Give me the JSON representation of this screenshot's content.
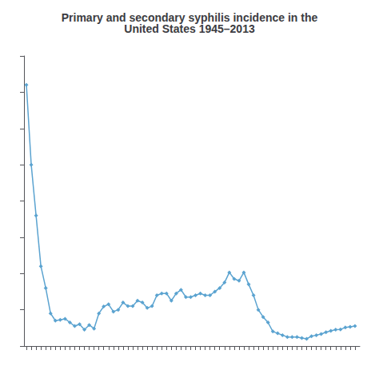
{
  "chart_data": {
    "type": "line",
    "title": "Primary and secondary syphilis incidence in the\nUnited States 1945–2013",
    "x": [
      1945,
      1946,
      1947,
      1948,
      1949,
      1950,
      1951,
      1952,
      1953,
      1954,
      1955,
      1956,
      1957,
      1958,
      1959,
      1960,
      1961,
      1962,
      1963,
      1964,
      1965,
      1966,
      1967,
      1968,
      1969,
      1970,
      1971,
      1972,
      1973,
      1974,
      1975,
      1976,
      1977,
      1978,
      1979,
      1980,
      1981,
      1982,
      1983,
      1984,
      1985,
      1986,
      1987,
      1988,
      1989,
      1990,
      1991,
      1992,
      1993,
      1994,
      1995,
      1996,
      1997,
      1998,
      1999,
      2000,
      2001,
      2002,
      2003,
      2004,
      2005,
      2006,
      2007,
      2008,
      2009,
      2010,
      2011,
      2012,
      2013
    ],
    "values": [
      72,
      50,
      36,
      22,
      16,
      9,
      7.0,
      7.2,
      7.5,
      6.5,
      5.5,
      6.0,
      4.5,
      5.8,
      4.8,
      9.0,
      10.9,
      11.5,
      9.5,
      10.0,
      12.0,
      11.0,
      11.0,
      12.5,
      12.0,
      10.5,
      11.0,
      14.0,
      14.5,
      14.5,
      12.5,
      14.5,
      15.5,
      13.5,
      13.5,
      14.0,
      14.5,
      14.0,
      14.0,
      15.0,
      16.0,
      17.5,
      20.3,
      18.5,
      18.0,
      20.3,
      17.0,
      14.0,
      10.0,
      8.0,
      6.5,
      4.0,
      3.5,
      3.0,
      2.5,
      2.5,
      2.5,
      2.2,
      2.0,
      2.7,
      3.0,
      3.3,
      3.8,
      4.2,
      4.5,
      4.6,
      5.1,
      5.3,
      5.5
    ],
    "color": "#5ba3d0",
    "marker": "diamond",
    "xlim": [
      1944.5,
      2014
    ],
    "xticks": [
      1945,
      1946,
      1947,
      1948,
      1949,
      1950,
      1951,
      1952,
      1953,
      1954,
      1955,
      1956,
      1957,
      1958,
      1959,
      1960,
      1961,
      1962,
      1963,
      1964,
      1965,
      1966,
      1967,
      1968,
      1969,
      1970,
      1971,
      1972,
      1973,
      1974,
      1975,
      1976,
      1977,
      1978,
      1979,
      1980,
      1981,
      1982,
      1983,
      1984,
      1985,
      1986,
      1987,
      1988,
      1989,
      1990,
      1991,
      1992,
      1993,
      1994,
      1995,
      1996,
      1997,
      1998,
      1999,
      2000,
      2001,
      2002,
      2003,
      2004,
      2005,
      2006,
      2007,
      2008,
      2009,
      2010,
      2011,
      2012,
      2013
    ],
    "ylim": [
      0,
      80
    ],
    "yticks": [
      0,
      10,
      20,
      30,
      40,
      50,
      60,
      70,
      80
    ],
    "grid": false,
    "tick_labels": false
  }
}
